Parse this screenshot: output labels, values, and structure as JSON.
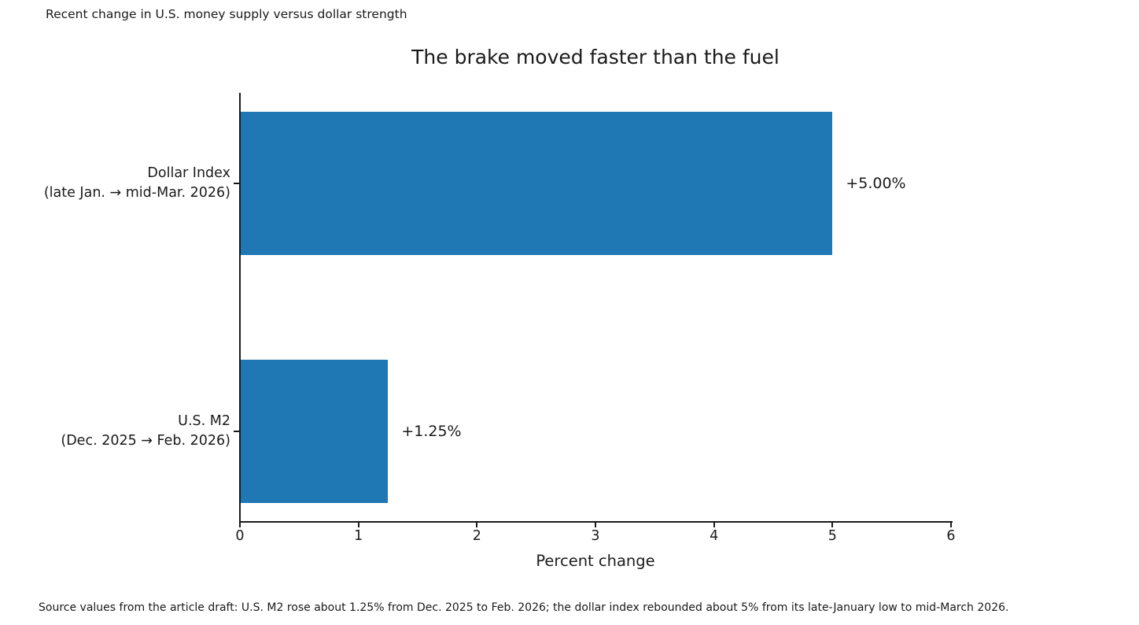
{
  "figure": {
    "context_note": "Recent change in U.S. money supply versus dollar strength",
    "source_note": "Source values from the article draft: U.S. M2 rose about 1.25% from Dec. 2025 to Feb. 2026; the dollar index rebounded about 5% from its late-January low to mid-March 2026."
  },
  "chart_data": {
    "type": "bar",
    "orientation": "horizontal",
    "title": "The brake moved faster than the fuel",
    "categories": [
      "Dollar Index\n(late Jan. → mid-Mar. 2026)",
      "U.S. M2\n(Dec. 2025 → Feb. 2026)"
    ],
    "category_keys": [
      "dollar-index",
      "us-m2"
    ],
    "values": [
      5.0,
      1.25
    ],
    "value_labels": [
      "+5.00%",
      "+1.25%"
    ],
    "xlabel": "Percent change",
    "xlim": [
      0,
      6
    ],
    "xticks": [
      0,
      1,
      2,
      3,
      4,
      5,
      6
    ],
    "xtick_labels": [
      "0",
      "1",
      "2",
      "3",
      "4",
      "5",
      "6"
    ],
    "bar_color": "#1f77b4",
    "grid": false,
    "legend": null,
    "spines": [
      "left",
      "bottom"
    ]
  }
}
